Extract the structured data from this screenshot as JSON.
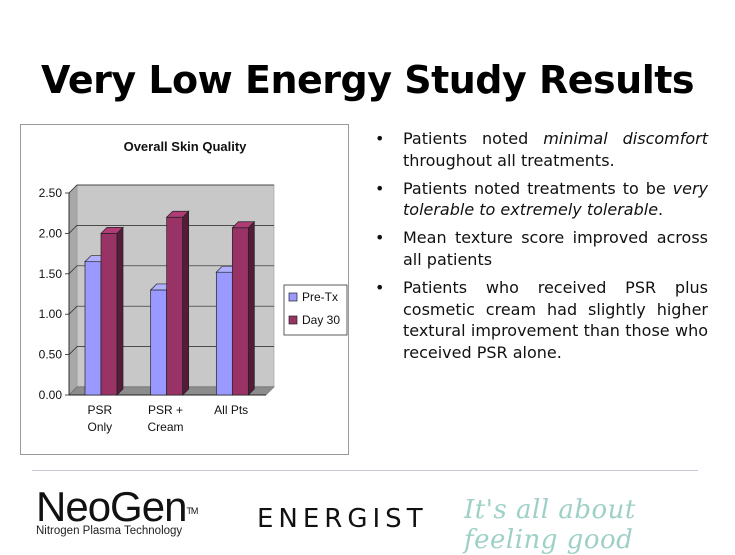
{
  "slide": {
    "title": "Very Low Energy Study Results"
  },
  "chart_data": {
    "type": "bar",
    "title": "Overall Skin Quality",
    "categories": [
      "PSR Only",
      "PSR + Cream",
      "All Pts"
    ],
    "category_lines": [
      [
        "PSR",
        "Only"
      ],
      [
        "PSR +",
        "Cream"
      ],
      [
        "All Pts"
      ]
    ],
    "series": [
      {
        "name": "Pre-Tx",
        "values": [
          1.65,
          1.3,
          1.52
        ],
        "color": "#9999ff"
      },
      {
        "name": "Day 30",
        "values": [
          2.0,
          2.2,
          2.07
        ],
        "color": "#993366"
      }
    ],
    "ylim": [
      0,
      2.5
    ],
    "yticks": [
      "0.00",
      "0.50",
      "1.00",
      "1.50",
      "2.00",
      "2.50"
    ],
    "grid": true,
    "style": "3d",
    "legend_position": "right"
  },
  "bullets": [
    {
      "parts": [
        {
          "t": "Patients noted "
        },
        {
          "t": "minimal discomfort",
          "i": true
        },
        {
          "t": " throughout all treatments."
        }
      ]
    },
    {
      "parts": [
        {
          "t": "Patients noted treatments to be "
        },
        {
          "t": "very tolerable to extremely tolerable",
          "i": true
        },
        {
          "t": "."
        }
      ]
    },
    {
      "parts": [
        {
          "t": "Mean texture score improved across all patients"
        }
      ]
    },
    {
      "parts": [
        {
          "t": "Patients who received PSR plus cosmetic cream had slightly higher textural improvement than those who received PSR alone."
        }
      ]
    }
  ],
  "footer": {
    "neogen_name": "NeoGen",
    "neogen_tm": "TM",
    "neogen_subtitle": "Nitrogen Plasma Technology",
    "energist_name": "ENERGIST",
    "tagline": "It's all about feeling good"
  }
}
